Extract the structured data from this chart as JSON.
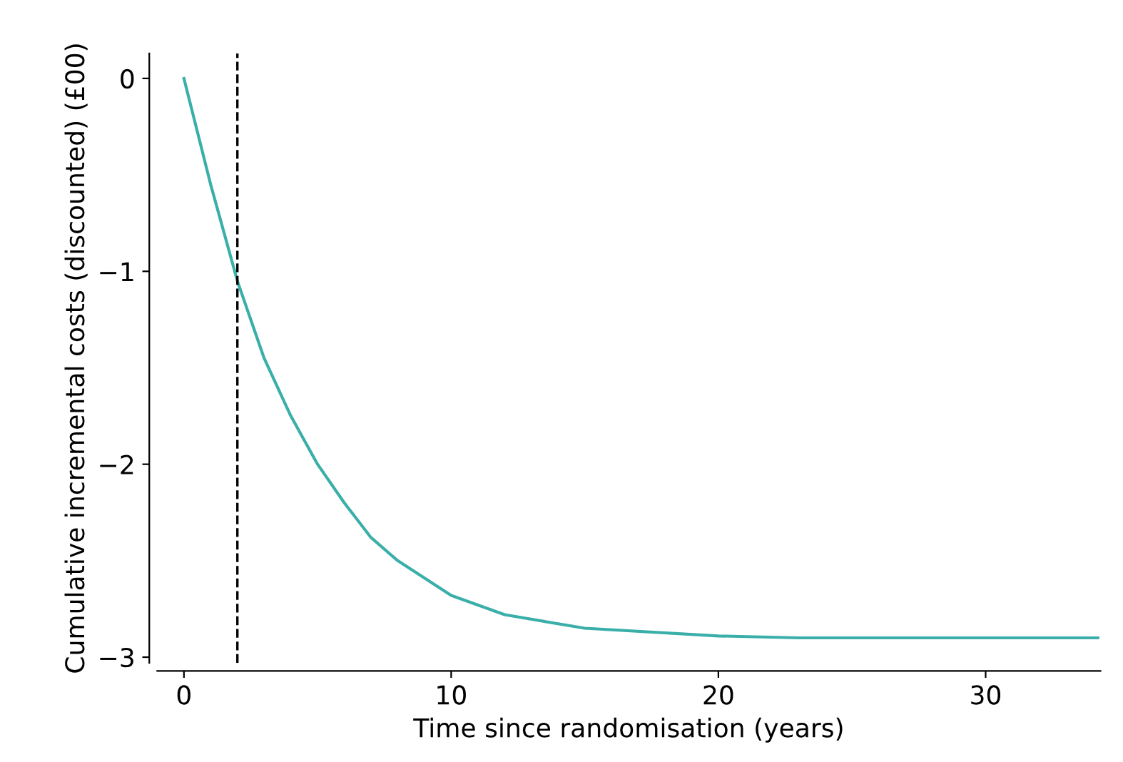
{
  "chart_data": {
    "type": "line",
    "xlabel": "Time since randomisation (years)",
    "ylabel": "Cumulative incremental costs (discounted) (£00)",
    "x": [
      0,
      1,
      2,
      3,
      4,
      5,
      6,
      7,
      8,
      10,
      12,
      15,
      20,
      23,
      30,
      34.2
    ],
    "series": [
      {
        "color": "#3aafa9",
        "values": [
          0,
          -0.55,
          -1.05,
          -1.45,
          -1.75,
          -2.0,
          -2.2,
          -2.38,
          -2.5,
          -2.68,
          -2.78,
          -2.85,
          -2.89,
          -2.9,
          -2.9,
          -2.9
        ]
      }
    ],
    "xlim": [
      -1,
      34.3
    ],
    "xticks": [
      0,
      10,
      20,
      30
    ],
    "ylim": [
      -3.03,
      0.13
    ],
    "yticks": [
      {
        "value": -3,
        "label": "−3"
      },
      {
        "value": -2,
        "label": "−2"
      },
      {
        "value": -1,
        "label": "−1"
      },
      0
    ],
    "ref_lines": [
      {
        "axis": "x",
        "value": 2,
        "color": "#000000",
        "line_style": "dashed"
      }
    ],
    "grid": false,
    "legend": false,
    "marker": "none",
    "line_style": "solid"
  }
}
